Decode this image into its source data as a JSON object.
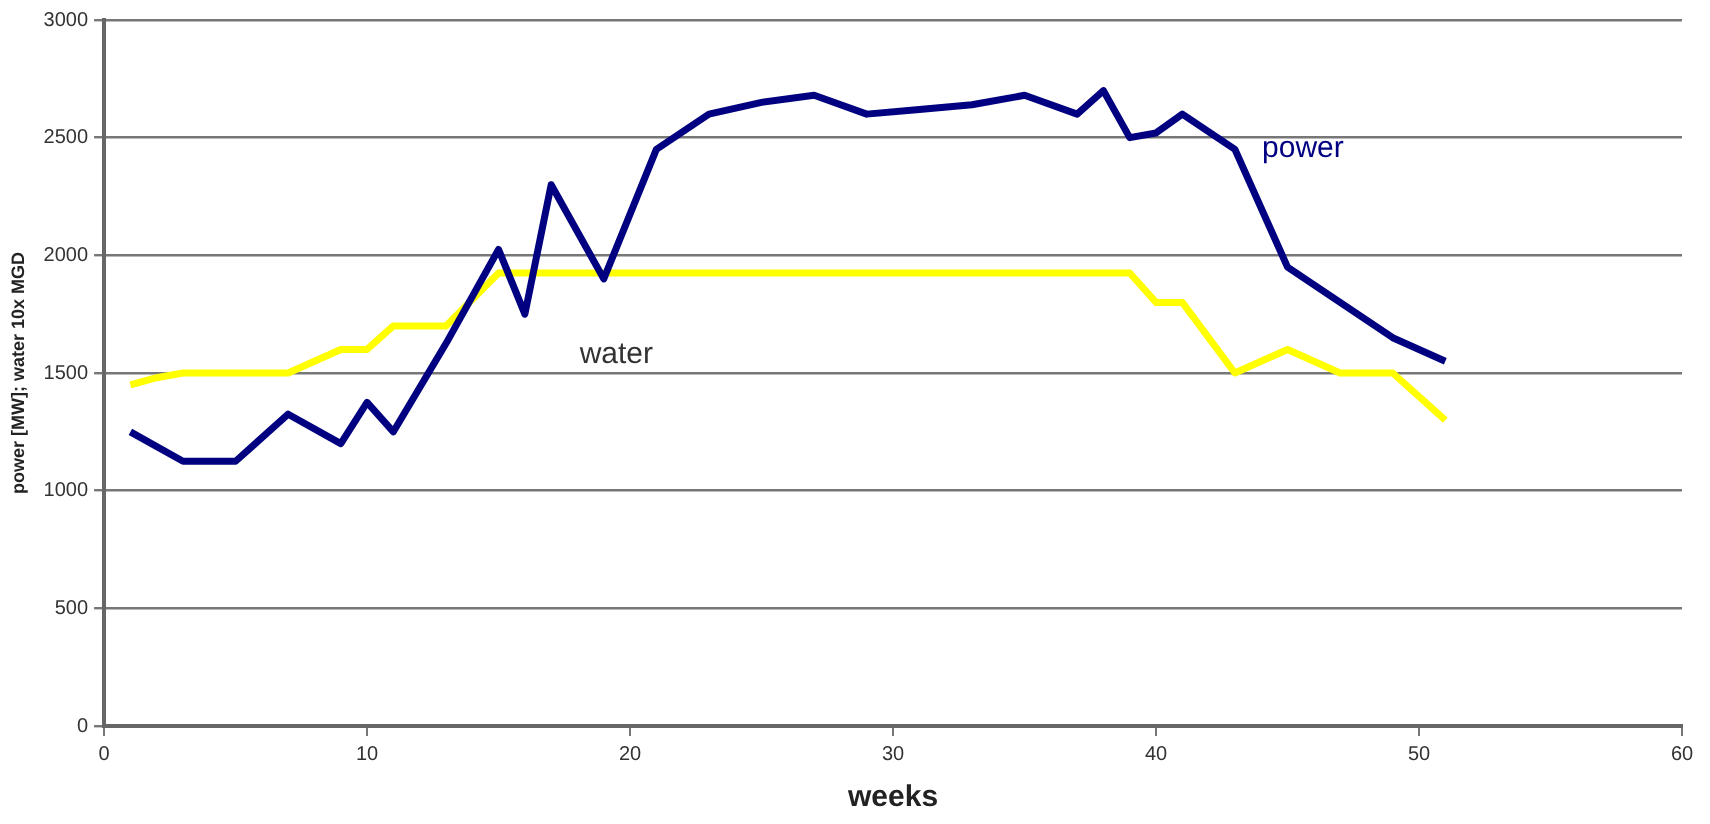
{
  "chart_data": {
    "type": "line",
    "xlabel": "weeks",
    "ylabel": "power [MW]; water 10x MGD",
    "xlim": [
      0,
      60
    ],
    "xticks": [
      0,
      10,
      20,
      30,
      40,
      50,
      60
    ],
    "ylim": [
      0,
      3000
    ],
    "yticks": [
      0,
      500,
      1000,
      1500,
      2000,
      2500,
      3000
    ],
    "grid": "y",
    "legend": false,
    "marker": "none",
    "series": [
      {
        "name": "power",
        "color": "#000080",
        "x": [
          1,
          3,
          5,
          7,
          9,
          10,
          11,
          13,
          15,
          16,
          17,
          19,
          21,
          23,
          25,
          27,
          29,
          31,
          33,
          35,
          37,
          38,
          39,
          40,
          41,
          43,
          45,
          47,
          49,
          51
        ],
        "values": [
          1250,
          1125,
          1125,
          1325,
          1200,
          1375,
          1250,
          1625,
          2025,
          1750,
          2300,
          1900,
          2450,
          2600,
          2650,
          2680,
          2600,
          2620,
          2640,
          2680,
          2600,
          2700,
          2500,
          2520,
          2600,
          2450,
          1950,
          1800,
          1650,
          1550
        ]
      },
      {
        "name": "water",
        "color": "#ffff00",
        "x": [
          1,
          2,
          3,
          5,
          7,
          9,
          10,
          11,
          12,
          13,
          15,
          17,
          19,
          21,
          23,
          25,
          27,
          29,
          31,
          33,
          35,
          37,
          39,
          40,
          41,
          43,
          45,
          47,
          49,
          51
        ],
        "values": [
          1450,
          1480,
          1500,
          1500,
          1500,
          1600,
          1600,
          1700,
          1700,
          1700,
          1925,
          1925,
          1925,
          1925,
          1925,
          1925,
          1925,
          1925,
          1925,
          1925,
          1925,
          1925,
          1925,
          1800,
          1800,
          1500,
          1600,
          1500,
          1500,
          1300
        ]
      }
    ]
  }
}
